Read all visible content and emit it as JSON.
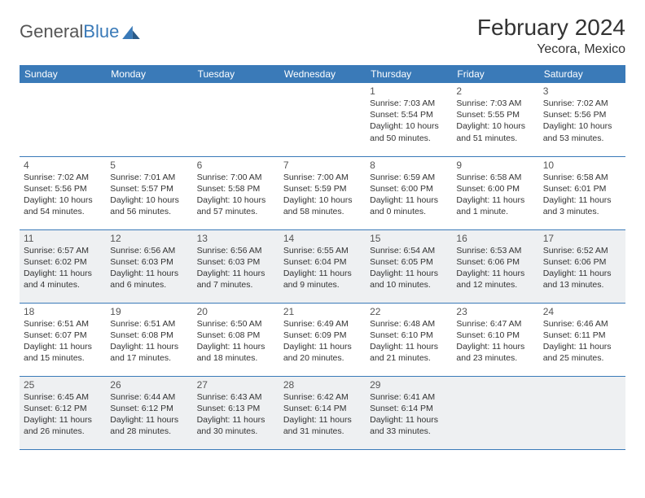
{
  "logo": {
    "part1": "General",
    "part2": "Blue"
  },
  "title": "February 2024",
  "location": "Yecora, Mexico",
  "colors": {
    "header_bg": "#3a7ab8",
    "alt_bg": "#eef0f2",
    "text": "#333333"
  },
  "weekdays": [
    "Sunday",
    "Monday",
    "Tuesday",
    "Wednesday",
    "Thursday",
    "Friday",
    "Saturday"
  ],
  "layout": {
    "first_day_column": 4,
    "days_in_month": 29,
    "alt_rows": [
      2,
      4
    ]
  },
  "days": {
    "1": {
      "sunrise": "7:03 AM",
      "sunset": "5:54 PM",
      "daylight": "10 hours and 50 minutes."
    },
    "2": {
      "sunrise": "7:03 AM",
      "sunset": "5:55 PM",
      "daylight": "10 hours and 51 minutes."
    },
    "3": {
      "sunrise": "7:02 AM",
      "sunset": "5:56 PM",
      "daylight": "10 hours and 53 minutes."
    },
    "4": {
      "sunrise": "7:02 AM",
      "sunset": "5:56 PM",
      "daylight": "10 hours and 54 minutes."
    },
    "5": {
      "sunrise": "7:01 AM",
      "sunset": "5:57 PM",
      "daylight": "10 hours and 56 minutes."
    },
    "6": {
      "sunrise": "7:00 AM",
      "sunset": "5:58 PM",
      "daylight": "10 hours and 57 minutes."
    },
    "7": {
      "sunrise": "7:00 AM",
      "sunset": "5:59 PM",
      "daylight": "10 hours and 58 minutes."
    },
    "8": {
      "sunrise": "6:59 AM",
      "sunset": "6:00 PM",
      "daylight": "11 hours and 0 minutes."
    },
    "9": {
      "sunrise": "6:58 AM",
      "sunset": "6:00 PM",
      "daylight": "11 hours and 1 minute."
    },
    "10": {
      "sunrise": "6:58 AM",
      "sunset": "6:01 PM",
      "daylight": "11 hours and 3 minutes."
    },
    "11": {
      "sunrise": "6:57 AM",
      "sunset": "6:02 PM",
      "daylight": "11 hours and 4 minutes."
    },
    "12": {
      "sunrise": "6:56 AM",
      "sunset": "6:03 PM",
      "daylight": "11 hours and 6 minutes."
    },
    "13": {
      "sunrise": "6:56 AM",
      "sunset": "6:03 PM",
      "daylight": "11 hours and 7 minutes."
    },
    "14": {
      "sunrise": "6:55 AM",
      "sunset": "6:04 PM",
      "daylight": "11 hours and 9 minutes."
    },
    "15": {
      "sunrise": "6:54 AM",
      "sunset": "6:05 PM",
      "daylight": "11 hours and 10 minutes."
    },
    "16": {
      "sunrise": "6:53 AM",
      "sunset": "6:06 PM",
      "daylight": "11 hours and 12 minutes."
    },
    "17": {
      "sunrise": "6:52 AM",
      "sunset": "6:06 PM",
      "daylight": "11 hours and 13 minutes."
    },
    "18": {
      "sunrise": "6:51 AM",
      "sunset": "6:07 PM",
      "daylight": "11 hours and 15 minutes."
    },
    "19": {
      "sunrise": "6:51 AM",
      "sunset": "6:08 PM",
      "daylight": "11 hours and 17 minutes."
    },
    "20": {
      "sunrise": "6:50 AM",
      "sunset": "6:08 PM",
      "daylight": "11 hours and 18 minutes."
    },
    "21": {
      "sunrise": "6:49 AM",
      "sunset": "6:09 PM",
      "daylight": "11 hours and 20 minutes."
    },
    "22": {
      "sunrise": "6:48 AM",
      "sunset": "6:10 PM",
      "daylight": "11 hours and 21 minutes."
    },
    "23": {
      "sunrise": "6:47 AM",
      "sunset": "6:10 PM",
      "daylight": "11 hours and 23 minutes."
    },
    "24": {
      "sunrise": "6:46 AM",
      "sunset": "6:11 PM",
      "daylight": "11 hours and 25 minutes."
    },
    "25": {
      "sunrise": "6:45 AM",
      "sunset": "6:12 PM",
      "daylight": "11 hours and 26 minutes."
    },
    "26": {
      "sunrise": "6:44 AM",
      "sunset": "6:12 PM",
      "daylight": "11 hours and 28 minutes."
    },
    "27": {
      "sunrise": "6:43 AM",
      "sunset": "6:13 PM",
      "daylight": "11 hours and 30 minutes."
    },
    "28": {
      "sunrise": "6:42 AM",
      "sunset": "6:14 PM",
      "daylight": "11 hours and 31 minutes."
    },
    "29": {
      "sunrise": "6:41 AM",
      "sunset": "6:14 PM",
      "daylight": "11 hours and 33 minutes."
    }
  },
  "labels": {
    "sunrise": "Sunrise:",
    "sunset": "Sunset:",
    "daylight": "Daylight:"
  }
}
